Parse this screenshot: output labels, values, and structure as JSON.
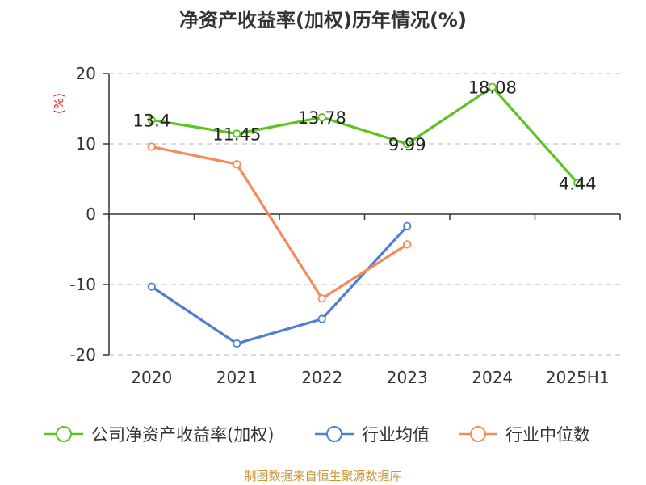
{
  "chart_data": {
    "type": "line",
    "title": "净资产收益率(加权)历年情况(%)",
    "ylabel": "(%)",
    "categories": [
      "2020",
      "2021",
      "2022",
      "2023",
      "2024",
      "2025H1"
    ],
    "ylim": [
      -20,
      20
    ],
    "yticks": [
      20,
      10,
      0,
      -10,
      -20
    ],
    "grid": true,
    "legend_position": "bottom",
    "series": [
      {
        "name": "公司净资产收益率(加权)",
        "color": "#5cc31f",
        "values": [
          13.4,
          11.45,
          13.78,
          9.99,
          18.08,
          4.44
        ],
        "labels": [
          "13.4",
          "11.45",
          "13.78",
          "9.99",
          "18.08",
          "4.44"
        ]
      },
      {
        "name": "行业均值",
        "color": "#4e7fd4",
        "values": [
          -10.3,
          -18.4,
          -14.9,
          -1.7,
          null,
          null
        ]
      },
      {
        "name": "行业中位数",
        "color": "#f58a5c",
        "values": [
          9.6,
          7.1,
          -12.0,
          -4.3,
          null,
          null
        ]
      }
    ],
    "source": "制图数据来自恒生聚源数据库"
  }
}
